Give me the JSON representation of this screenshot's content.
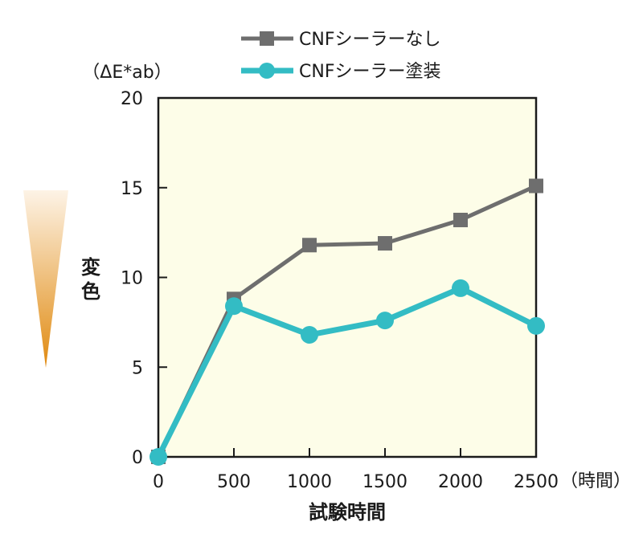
{
  "chart_data": {
    "type": "line",
    "x": [
      0,
      500,
      1000,
      1500,
      2000,
      2500
    ],
    "xticks": [
      "0",
      "500",
      "1000",
      "1500",
      "2000",
      "2500"
    ],
    "yticks": [
      "0",
      "5",
      "10",
      "15",
      "20"
    ],
    "xlim": [
      0,
      2500
    ],
    "ylim": [
      0,
      20
    ],
    "xlabel": "試験時間",
    "xunit": "（時間）",
    "ylabel": "変色",
    "yunit": "（ΔE*ab）",
    "grid": false,
    "legend_position": "top",
    "plot_background": "#fdfde8",
    "series": [
      {
        "name": "CNFシーラーなし",
        "values": [
          0,
          8.8,
          11.8,
          11.9,
          13.2,
          15.1
        ],
        "color": "#6e6e6e",
        "marker": "square"
      },
      {
        "name": "CNFシーラー塗装",
        "values": [
          0,
          8.4,
          6.8,
          7.6,
          9.4,
          7.3
        ],
        "color": "#33bcc4",
        "marker": "circle"
      }
    ]
  },
  "gradient_indicator": {
    "top_color": "#fdf3e6",
    "bottom_color": "#e08a10",
    "icon": "color-change-triangle-icon"
  }
}
